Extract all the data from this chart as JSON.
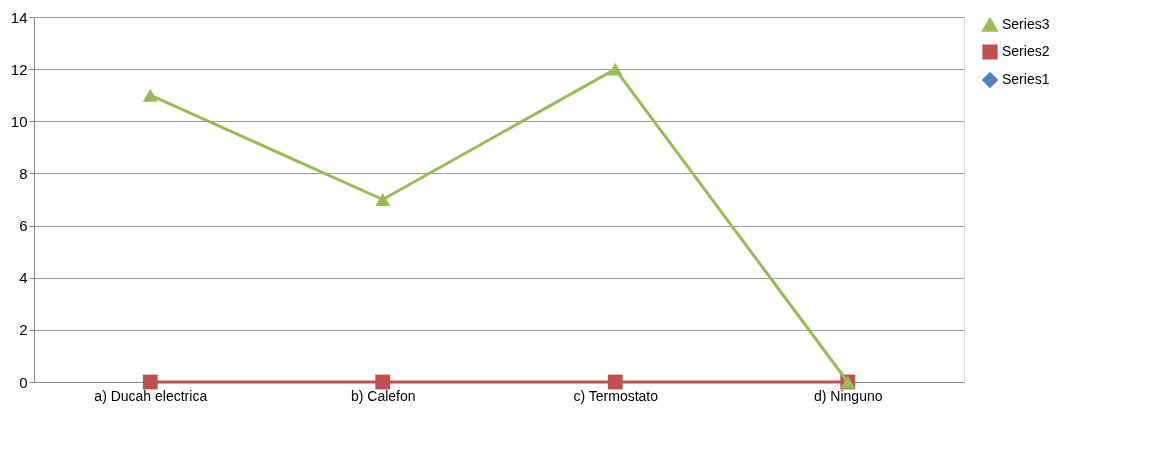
{
  "chart_data": {
    "type": "line",
    "categories": [
      "a)    Ducah electrica",
      "b)    Calefon",
      "c)    Termostato",
      "d)    Ninguno"
    ],
    "series": [
      {
        "name": "Series3",
        "color": "#9bbb59",
        "marker": "triangle",
        "values": [
          11,
          7,
          12,
          0
        ]
      },
      {
        "name": "Series2",
        "color": "#c0504d",
        "marker": "square",
        "values": [
          0,
          0,
          0,
          0
        ]
      },
      {
        "name": "Series1",
        "color": "#4f81bd",
        "marker": "diamond",
        "values": [
          null,
          null,
          null,
          null
        ]
      }
    ],
    "ylim": [
      0,
      14
    ],
    "yticks": [
      0,
      2,
      4,
      6,
      8,
      10,
      12,
      14
    ],
    "grid": "y",
    "legend": "right",
    "line_style": "solid"
  }
}
